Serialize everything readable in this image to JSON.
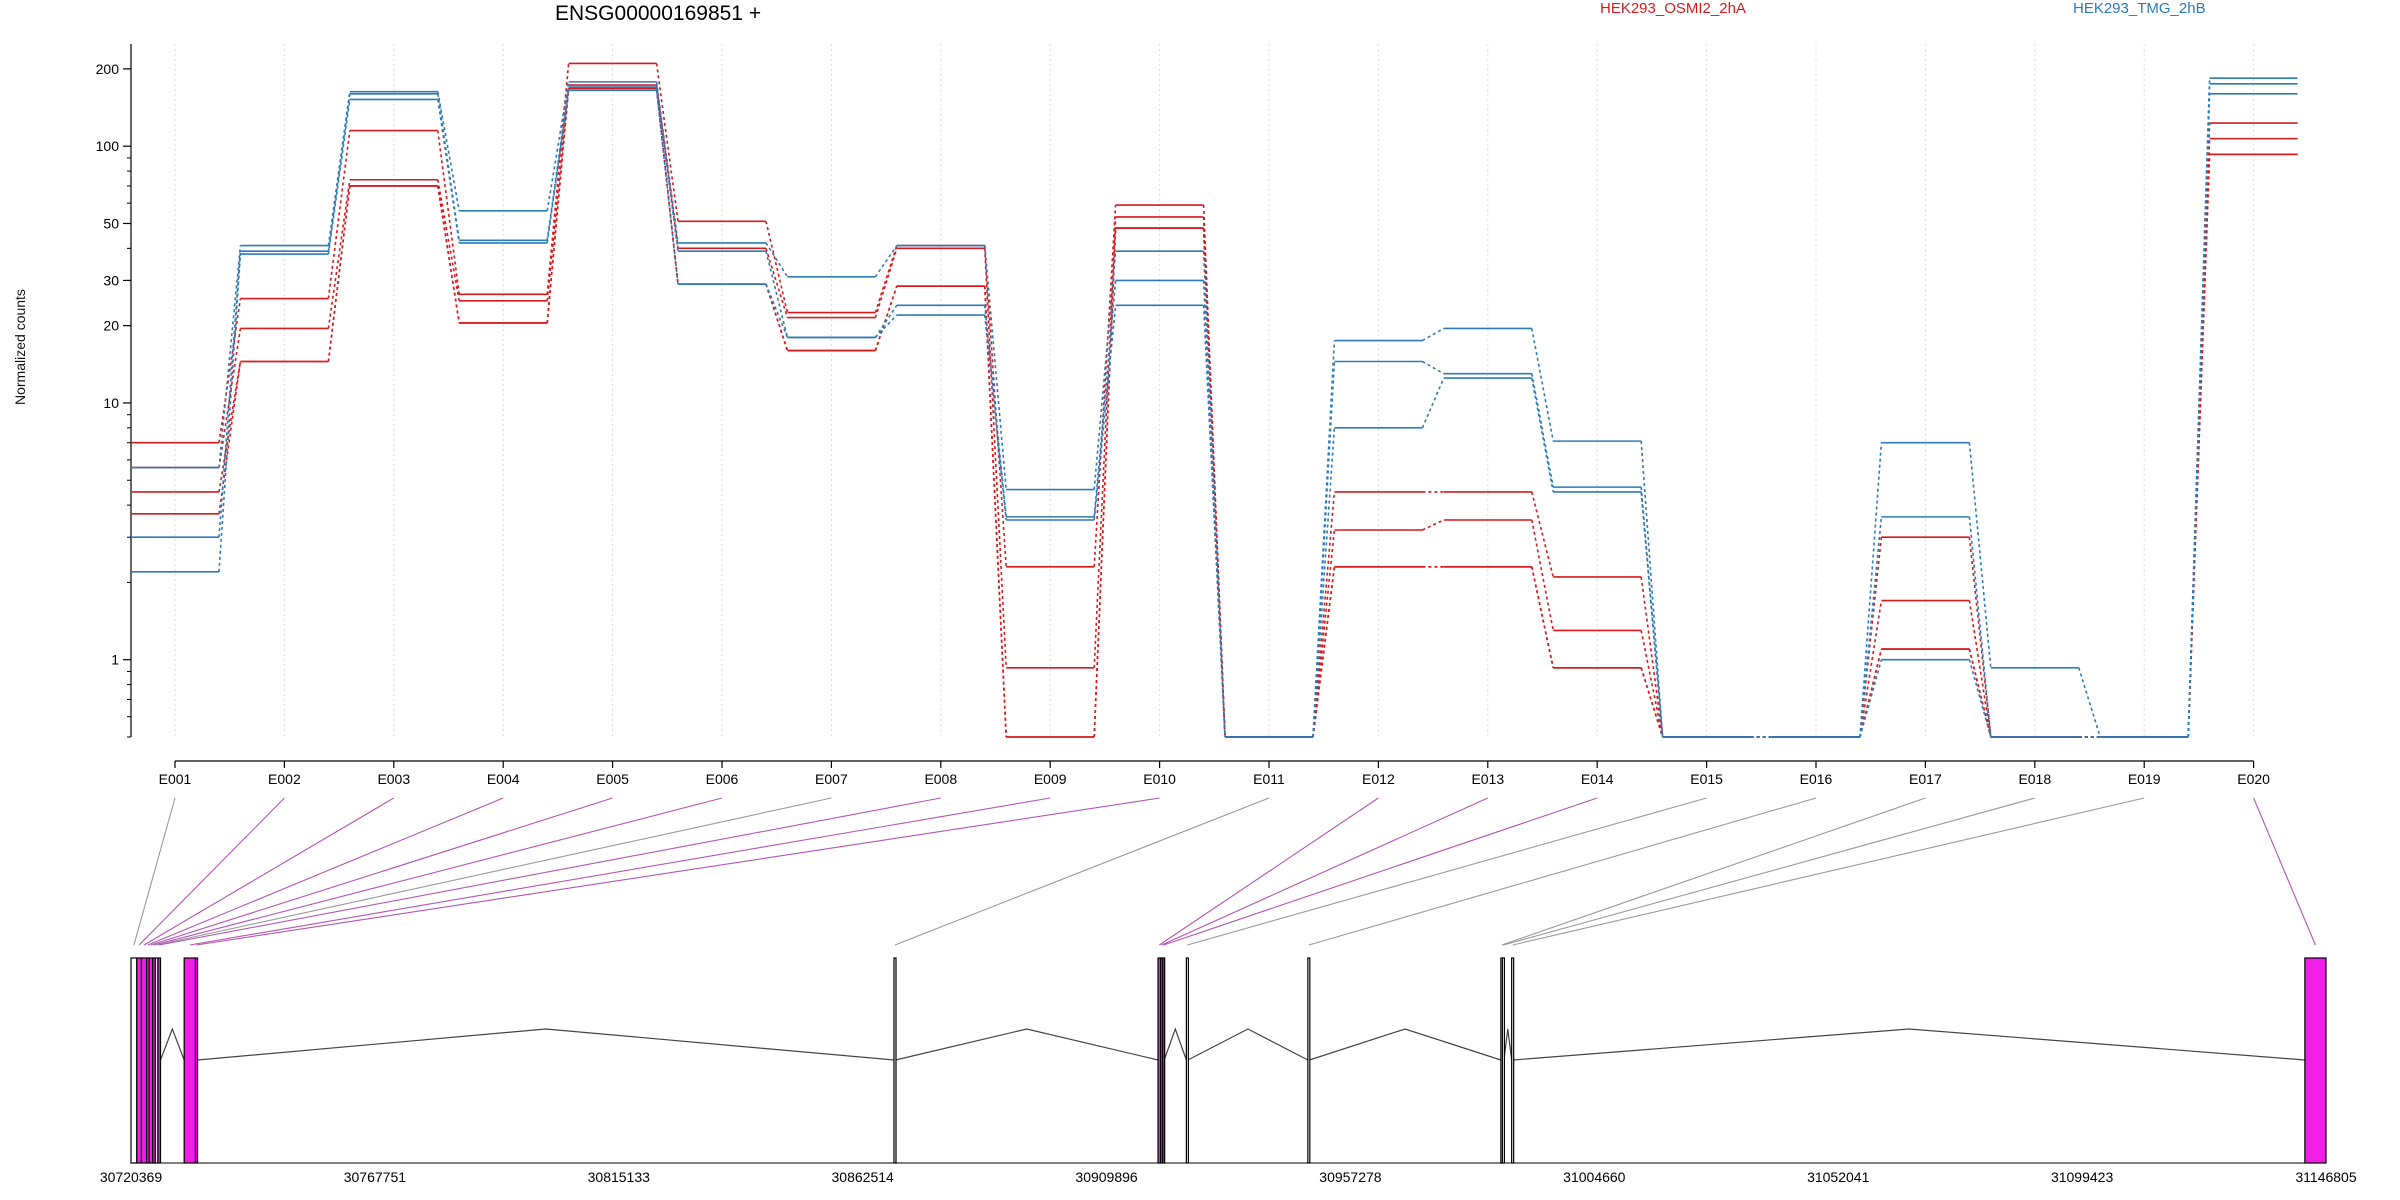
{
  "chart_data": {
    "type": "line",
    "title": "ENSG00000169851 +",
    "ylabel": "Normalized counts",
    "xlabel": "",
    "y_scale": "log",
    "y_ticks": [
      1,
      10,
      20,
      30,
      50,
      100,
      200
    ],
    "y_range": [
      0.5,
      250
    ],
    "grid": "vertical dotted at each exon",
    "legend_placement": "top",
    "categories": [
      "E001",
      "E002",
      "E003",
      "E004",
      "E005",
      "E006",
      "E007",
      "E008",
      "E009",
      "E010",
      "E011",
      "E012",
      "E013",
      "E014",
      "E015",
      "E016",
      "E017",
      "E018",
      "E019",
      "E020"
    ],
    "series": [
      {
        "name": "",
        "group": "HEK293_OSMI2_2hA",
        "color": "#d7191c",
        "values": [
          7.0,
          25.5,
          115,
          26.5,
          210,
          51,
          22.5,
          41,
          2.3,
          59,
          0.5,
          4.5,
          4.5,
          2.1,
          0.5,
          0.5,
          3.0,
          0.5,
          0.5,
          123
        ]
      },
      {
        "name": "",
        "group": "HEK293_OSMI2_2hA",
        "color": "#d7191c",
        "values": [
          5.6,
          19.5,
          74,
          25,
          173,
          40,
          21.5,
          40,
          0.93,
          53,
          0.5,
          3.2,
          3.5,
          1.3,
          0.5,
          0.5,
          1.7,
          0.5,
          0.5,
          107
        ]
      },
      {
        "name": "",
        "group": "HEK293_OSMI2_2hA",
        "color": "#d7191c",
        "values": [
          4.5,
          14.5,
          70,
          20.5,
          168,
          29,
          16,
          28.5,
          0.5,
          48,
          0.5,
          2.3,
          2.3,
          0.93,
          0.5,
          0.5,
          1.1,
          0.5,
          0.5,
          93
        ]
      },
      {
        "name": "",
        "group": "HEK293_OSMI2_2hA",
        "color": "#d7191c",
        "values": [
          3.7,
          14.5,
          70,
          20.5,
          168,
          29,
          16,
          28.5,
          0.5,
          48,
          0.5,
          2.3,
          2.3,
          0.93,
          0.5,
          0.5,
          1.1,
          0.5,
          0.5,
          93
        ]
      },
      {
        "name": "",
        "group": "HEK293_TMG_2hB",
        "color": "#2c7bb6",
        "values": [
          5.6,
          41,
          163,
          56,
          178,
          42,
          31,
          41,
          4.6,
          39,
          0.5,
          17.5,
          19.5,
          7.1,
          0.5,
          0.5,
          7.0,
          0.93,
          0.5,
          184
        ]
      },
      {
        "name": "",
        "group": "HEK293_TMG_2hB",
        "color": "#2c7bb6",
        "values": [
          3.0,
          39,
          160,
          43,
          170,
          39,
          18,
          24,
          3.6,
          30,
          0.5,
          14.5,
          13,
          4.7,
          0.5,
          0.5,
          3.6,
          0.5,
          0.5,
          175
        ]
      },
      {
        "name": "",
        "group": "HEK293_TMG_2hB",
        "color": "#2c7bb6",
        "values": [
          2.2,
          38,
          152,
          42,
          165,
          29,
          18,
          22,
          3.5,
          24,
          0.5,
          8.0,
          12.5,
          4.5,
          0.5,
          0.5,
          1.0,
          0.5,
          0.5,
          160
        ]
      }
    ],
    "legend": [
      {
        "label": "HEK293_OSMI2_2hA",
        "color": "#d7191c"
      },
      {
        "label": "HEK293_TMG_2hB",
        "color": "#2c7bb6"
      }
    ],
    "genomic_axis": {
      "range": [
        30720369,
        31146805
      ],
      "tick_labels": [
        "30720369",
        "30767751",
        "30815133",
        "30862514",
        "30909896",
        "30957278",
        "31004660",
        "31052041",
        "31099423",
        "31146805"
      ],
      "tick_values": [
        30720369,
        30767751,
        30815133,
        30862514,
        30909896,
        30957278,
        31004660,
        31052041,
        31099423,
        31146805
      ]
    },
    "exons": [
      {
        "id": "E001",
        "start": 30720369,
        "end": 30721500,
        "significant": false
      },
      {
        "id": "E002",
        "start": 30721500,
        "end": 30722400,
        "significant": true
      },
      {
        "id": "E003",
        "start": 30722400,
        "end": 30723400,
        "significant": true
      },
      {
        "id": "E004",
        "start": 30723400,
        "end": 30723900,
        "significant": true
      },
      {
        "id": "E005",
        "start": 30723900,
        "end": 30724600,
        "significant": true
      },
      {
        "id": "E006",
        "start": 30724600,
        "end": 30725100,
        "significant": true
      },
      {
        "id": "E007",
        "start": 30725100,
        "end": 30725600,
        "significant": false
      },
      {
        "id": "E008",
        "start": 30725600,
        "end": 30726100,
        "significant": true
      },
      {
        "id": "E009",
        "start": 30730700,
        "end": 30732900,
        "significant": true
      },
      {
        "id": "E010",
        "start": 30732900,
        "end": 30733300,
        "significant": true
      },
      {
        "id": "E011",
        "start": 30868600,
        "end": 30868900,
        "significant": false
      },
      {
        "id": "E012",
        "start": 30919900,
        "end": 30920400,
        "significant": true
      },
      {
        "id": "E013",
        "start": 30920400,
        "end": 30920800,
        "significant": true
      },
      {
        "id": "E014",
        "start": 30920800,
        "end": 30921100,
        "significant": true
      },
      {
        "id": "E015",
        "start": 30925400,
        "end": 30925700,
        "significant": false
      },
      {
        "id": "E016",
        "start": 30949000,
        "end": 30949300,
        "significant": false
      },
      {
        "id": "E017",
        "start": 30986500,
        "end": 30986800,
        "significant": false
      },
      {
        "id": "E018",
        "start": 30986800,
        "end": 30987100,
        "significant": false
      },
      {
        "id": "E019",
        "start": 30988600,
        "end": 30988900,
        "significant": false
      },
      {
        "id": "E020",
        "start": 31142700,
        "end": 31146805,
        "significant": true
      }
    ],
    "introns": [
      {
        "start": 30726100,
        "end": 30730700
      },
      {
        "start": 30733300,
        "end": 30868600
      },
      {
        "start": 30868900,
        "end": 30919900
      },
      {
        "start": 30921100,
        "end": 30925400
      },
      {
        "start": 30925700,
        "end": 30949000
      },
      {
        "start": 30949300,
        "end": 30986500
      },
      {
        "start": 30987100,
        "end": 30988600
      },
      {
        "start": 30988900,
        "end": 31142700
      }
    ],
    "colors": {
      "significant_exon": "#f01ee6",
      "significant_link": "#b455b4",
      "other_link": "#999999",
      "intron": "#444444"
    }
  }
}
